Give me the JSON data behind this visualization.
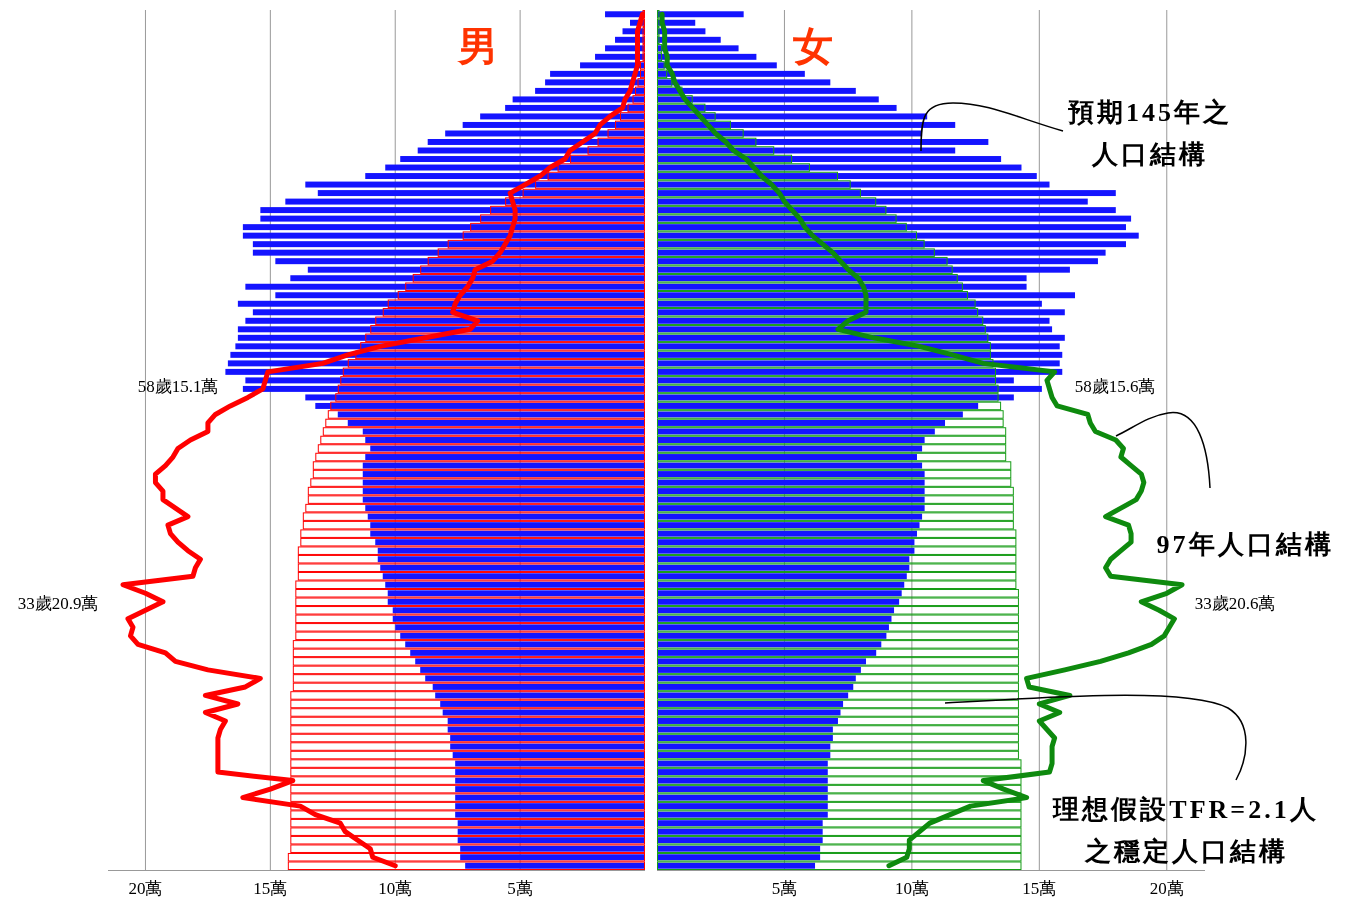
{
  "chart_data": [
    {
      "type": "bar",
      "orientation": "horizontal",
      "title": "男",
      "categories": [
        null,
        null,
        null,
        null,
        null,
        null,
        null,
        null,
        null,
        null,
        null,
        null,
        null,
        null,
        null,
        null,
        null,
        null,
        null,
        null,
        null,
        null,
        null,
        null,
        null,
        null,
        null,
        null,
        null,
        null,
        null,
        null,
        null,
        null,
        null,
        null,
        null,
        null,
        null,
        null,
        null,
        null,
        null,
        null,
        null,
        null,
        null,
        null,
        null,
        null,
        null,
        null,
        null,
        null,
        null,
        null,
        null,
        null,
        null,
        null,
        null,
        null,
        null,
        null,
        null,
        null,
        null,
        null,
        null,
        null,
        null,
        null,
        null,
        null,
        null,
        null,
        null,
        null,
        null,
        null,
        null,
        null,
        null,
        null,
        null,
        null,
        null,
        null,
        null,
        null,
        null,
        null,
        null,
        null,
        null,
        null,
        null,
        null,
        null,
        null,
        null
      ],
      "xlim": [
        21.5,
        0
      ],
      "xticks": [
        {
          "value": 20,
          "label": "20萬"
        },
        {
          "value": 15,
          "label": "15萬"
        },
        {
          "value": 10,
          "label": "10萬"
        },
        {
          "value": 5,
          "label": "5萬"
        }
      ],
      "grid": "x",
      "series": [
        {
          "color": "#ff0000",
          "values": [
            0.1,
            0.1,
            0.1,
            0.1,
            0.1,
            0.1,
            0.2,
            0.2,
            0.3,
            0.4,
            0.5,
            0.7,
            1.0,
            1.2,
            1.5,
            1.9,
            2.3,
            3.0,
            3.5,
            3.9,
            4.4,
            4.9,
            5.6,
            6.2,
            6.6,
            7.0,
            7.3,
            7.9,
            8.3,
            8.7,
            9.0,
            9.3,
            9.6,
            9.9,
            10.3,
            10.5,
            10.8,
            11.0,
            11.2,
            11.4,
            11.6,
            11.9,
            12.1,
            12.2,
            12.3,
            12.4,
            12.6,
            12.7,
            12.8,
            12.9,
            13.0,
            13.1,
            13.2,
            13.3,
            13.3,
            13.4,
            13.5,
            13.5,
            13.6,
            13.7,
            13.7,
            13.8,
            13.8,
            13.9,
            13.9,
            13.9,
            13.9,
            14.0,
            14.0,
            14.0,
            14.0,
            14.0,
            14.0,
            14.0,
            14.1,
            14.1,
            14.1,
            14.1,
            14.1,
            14.1,
            14.2,
            14.2,
            14.2,
            14.2,
            14.2,
            14.2,
            14.2,
            14.2,
            14.2,
            14.2,
            14.2,
            14.2,
            14.2,
            14.2,
            14.2,
            14.2,
            14.2,
            14.2,
            14.2,
            14.3,
            14.3
          ]
        },
        {
          "color": "#1414ff",
          "values": [
            1.6,
            0.6,
            0.9,
            1.2,
            1.6,
            2.0,
            2.6,
            3.8,
            4.0,
            4.4,
            5.3,
            5.6,
            6.6,
            7.3,
            8.0,
            8.7,
            9.1,
            9.8,
            10.4,
            11.2,
            13.6,
            13.1,
            14.4,
            15.4,
            15.4,
            16.1,
            16.1,
            15.7,
            15.7,
            14.8,
            13.5,
            14.2,
            16.0,
            14.8,
            16.3,
            15.7,
            16.0,
            16.3,
            16.3,
            16.4,
            16.6,
            16.7,
            16.8,
            16.0,
            16.1,
            13.6,
            13.2,
            12.3,
            11.9,
            11.3,
            11.2,
            11.0,
            11.2,
            11.3,
            11.3,
            11.3,
            11.3,
            11.3,
            11.2,
            11.1,
            11.0,
            11.0,
            10.8,
            10.7,
            10.7,
            10.6,
            10.5,
            10.4,
            10.3,
            10.3,
            10.1,
            10.1,
            10.0,
            9.8,
            9.6,
            9.4,
            9.2,
            9.0,
            8.8,
            8.5,
            8.4,
            8.2,
            8.1,
            7.9,
            7.9,
            7.8,
            7.8,
            7.7,
            7.6,
            7.6,
            7.6,
            7.6,
            7.6,
            7.6,
            7.6,
            7.5,
            7.5,
            7.5,
            7.4,
            7.4,
            7.2
          ]
        },
        {
          "type": "line",
          "color": "#ff0000",
          "values": [
            0.1,
            0.2,
            0.3,
            0.3,
            0.3,
            0.3,
            0.3,
            0.4,
            0.5,
            0.6,
            0.8,
            0.9,
            1.4,
            1.8,
            2.0,
            2.5,
            3.0,
            3.2,
            3.8,
            4.2,
            4.8,
            5.4,
            5.3,
            5.2,
            5.2,
            5.3,
            5.4,
            5.6,
            5.8,
            6.1,
            6.8,
            6.9,
            7.1,
            7.4,
            7.6,
            7.7,
            6.7,
            7.0,
            8.8,
            10.6,
            11.9,
            12.9,
            15.1,
            15.2,
            15.3,
            15.9,
            16.6,
            17.2,
            17.5,
            17.5,
            18.2,
            18.7,
            18.9,
            19.2,
            19.6,
            19.6,
            19.3,
            19.3,
            18.8,
            18.3,
            19.1,
            19.0,
            18.7,
            18.3,
            17.8,
            18.0,
            18.1,
            20.9,
            20.0,
            19.3,
            20.0,
            20.7,
            20.5,
            20.6,
            20.3,
            19.2,
            18.8,
            17.5,
            15.4,
            16.0,
            17.6,
            16.3,
            17.6,
            16.8,
            17.0,
            17.1,
            17.1,
            17.1,
            17.1,
            17.1,
            14.1,
            15.0,
            16.1,
            13.8,
            13.2,
            12.2,
            12.0,
            11.5,
            11.0,
            10.9,
            10.0
          ]
        }
      ],
      "annotations": [
        "58歲15.1萬",
        "33歲20.9萬"
      ]
    },
    {
      "type": "bar",
      "orientation": "horizontal",
      "title": "女",
      "categories": [
        null,
        null,
        null,
        null,
        null,
        null,
        null,
        null,
        null,
        null,
        null,
        null,
        null,
        null,
        null,
        null,
        null,
        null,
        null,
        null,
        null,
        null,
        null,
        null,
        null,
        null,
        null,
        null,
        null,
        null,
        null,
        null,
        null,
        null,
        null,
        null,
        null,
        null,
        null,
        null,
        null,
        null,
        null,
        null,
        null,
        null,
        null,
        null,
        null,
        null,
        null,
        null,
        null,
        null,
        null,
        null,
        null,
        null,
        null,
        null,
        null,
        null,
        null,
        null,
        null,
        null,
        null,
        null,
        null,
        null,
        null,
        null,
        null,
        null,
        null,
        null,
        null,
        null,
        null,
        null,
        null,
        null,
        null,
        null,
        null,
        null,
        null,
        null,
        null,
        null,
        null,
        null,
        null,
        null,
        null,
        null,
        null,
        null,
        null,
        null,
        null
      ],
      "xlim": [
        0,
        21.5
      ],
      "xticks": [
        {
          "value": 5,
          "label": "5萬"
        },
        {
          "value": 10,
          "label": "10萬"
        },
        {
          "value": 15,
          "label": "15萬"
        },
        {
          "value": 20,
          "label": "20萬"
        }
      ],
      "grid": "x",
      "series": [
        {
          "color": "#169c16",
          "values": [
            0.1,
            0.1,
            0.1,
            0.1,
            0.2,
            0.2,
            0.3,
            0.4,
            0.6,
            1.0,
            1.4,
            1.9,
            2.3,
            2.9,
            3.4,
            3.9,
            4.6,
            5.3,
            6.0,
            7.1,
            7.6,
            8.0,
            8.6,
            9.0,
            9.4,
            9.8,
            10.2,
            10.5,
            10.9,
            11.4,
            11.6,
            11.8,
            12.0,
            12.2,
            12.5,
            12.6,
            12.8,
            12.9,
            13.0,
            13.1,
            13.1,
            13.2,
            13.3,
            13.3,
            13.4,
            13.4,
            13.5,
            13.6,
            13.6,
            13.7,
            13.7,
            13.7,
            13.7,
            13.9,
            13.9,
            13.9,
            14.0,
            14.0,
            14.0,
            14.0,
            14.0,
            14.1,
            14.1,
            14.1,
            14.1,
            14.1,
            14.1,
            14.1,
            14.2,
            14.2,
            14.2,
            14.2,
            14.2,
            14.2,
            14.2,
            14.2,
            14.2,
            14.2,
            14.2,
            14.2,
            14.2,
            14.2,
            14.2,
            14.2,
            14.2,
            14.2,
            14.2,
            14.2,
            14.3,
            14.3,
            14.3,
            14.3,
            14.3,
            14.3,
            14.3,
            14.3,
            14.3,
            14.3,
            14.3,
            14.3,
            14.3
          ]
        },
        {
          "color": "#1414ff",
          "values": [
            3.4,
            1.5,
            1.9,
            2.5,
            3.2,
            3.9,
            4.7,
            5.8,
            6.8,
            7.8,
            8.7,
            9.4,
            10.6,
            11.7,
            10.4,
            13.0,
            11.7,
            13.5,
            14.3,
            14.9,
            15.4,
            18.0,
            16.9,
            18.0,
            18.6,
            18.4,
            18.9,
            18.4,
            17.6,
            17.3,
            16.2,
            14.5,
            14.5,
            16.4,
            15.1,
            16.0,
            15.4,
            15.5,
            16.0,
            15.8,
            15.9,
            15.8,
            15.9,
            14.0,
            15.1,
            14.0,
            12.6,
            12.0,
            11.3,
            10.9,
            10.5,
            10.4,
            10.2,
            10.4,
            10.5,
            10.5,
            10.5,
            10.5,
            10.5,
            10.4,
            10.3,
            10.2,
            10.1,
            10.1,
            9.9,
            9.9,
            9.8,
            9.7,
            9.6,
            9.5,
            9.3,
            9.2,
            9.1,
            9.0,
            8.8,
            8.6,
            8.2,
            8.0,
            7.8,
            7.7,
            7.5,
            7.3,
            7.2,
            7.1,
            6.9,
            6.9,
            6.8,
            6.8,
            6.7,
            6.7,
            6.7,
            6.7,
            6.7,
            6.7,
            6.7,
            6.5,
            6.5,
            6.5,
            6.4,
            6.4,
            6.2
          ]
        },
        {
          "type": "line",
          "color": "#0e8a0e",
          "values": [
            0.2,
            0.2,
            0.3,
            0.3,
            0.3,
            0.4,
            0.4,
            0.6,
            0.7,
            0.9,
            1.1,
            1.4,
            1.7,
            2.0,
            2.3,
            2.7,
            3.0,
            3.5,
            3.8,
            4.1,
            4.5,
            4.8,
            5.0,
            5.3,
            5.6,
            5.8,
            6.1,
            6.5,
            6.9,
            7.2,
            7.5,
            7.9,
            8.1,
            8.2,
            8.2,
            8.2,
            7.5,
            7.1,
            8.5,
            10.3,
            11.6,
            12.8,
            15.6,
            15.3,
            15.4,
            15.5,
            15.7,
            16.9,
            17.0,
            17.2,
            18.0,
            18.3,
            18.2,
            18.6,
            19.0,
            19.1,
            19.0,
            18.8,
            18.2,
            17.6,
            18.5,
            18.6,
            18.6,
            18.2,
            17.8,
            17.6,
            17.8,
            20.6,
            20.0,
            19.0,
            19.7,
            20.3,
            20.1,
            19.9,
            19.4,
            18.5,
            17.4,
            16.0,
            14.5,
            14.6,
            16.2,
            15.0,
            15.8,
            15.0,
            15.3,
            15.6,
            15.5,
            15.5,
            15.5,
            15.4,
            12.8,
            13.6,
            14.5,
            12.3,
            11.5,
            10.7,
            10.3,
            9.9,
            9.9,
            9.8,
            9.1
          ]
        }
      ],
      "annotations": [
        "58歲15.6萬",
        "33歲20.6萬",
        "預期145年之人口結構",
        "97年人口結構",
        "理想假設TFR=2.1人之穩定人口結構"
      ]
    }
  ]
}
